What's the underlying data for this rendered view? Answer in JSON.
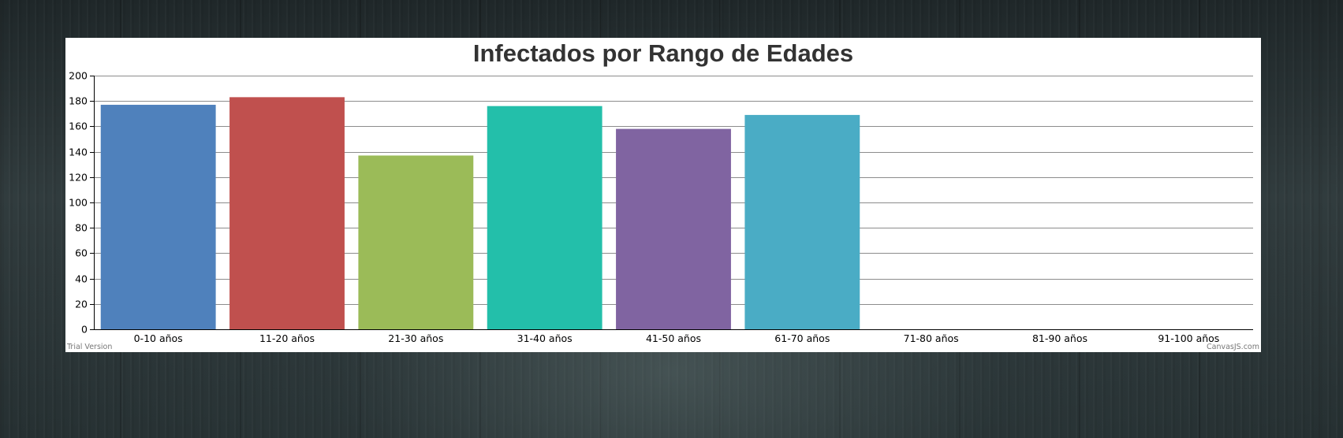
{
  "chart_data": {
    "type": "bar",
    "title": "Infectados por Rango de Edades",
    "xlabel": "",
    "ylabel": "",
    "categories": [
      "0-10 años",
      "11-20 años",
      "21-30 años",
      "31-40 años",
      "41-50 años",
      "61-70 años",
      "71-80 años",
      "81-90 años",
      "91-100 años"
    ],
    "values": [
      177,
      183,
      137,
      176,
      158,
      169,
      0,
      0,
      0
    ],
    "colors": [
      "#4f81bc",
      "#c0504e",
      "#9bbb58",
      "#23bfaa",
      "#8064a1",
      "#4aacc5",
      "#f79647",
      "#7f6084",
      "#77a033"
    ],
    "ylim": [
      0,
      200
    ],
    "yticks": [
      0,
      20,
      40,
      60,
      80,
      100,
      120,
      140,
      160,
      180,
      200
    ],
    "grid": true,
    "legend": "none"
  },
  "watermarks": {
    "left": "Trial Version",
    "right": "CanvasJS.com"
  }
}
